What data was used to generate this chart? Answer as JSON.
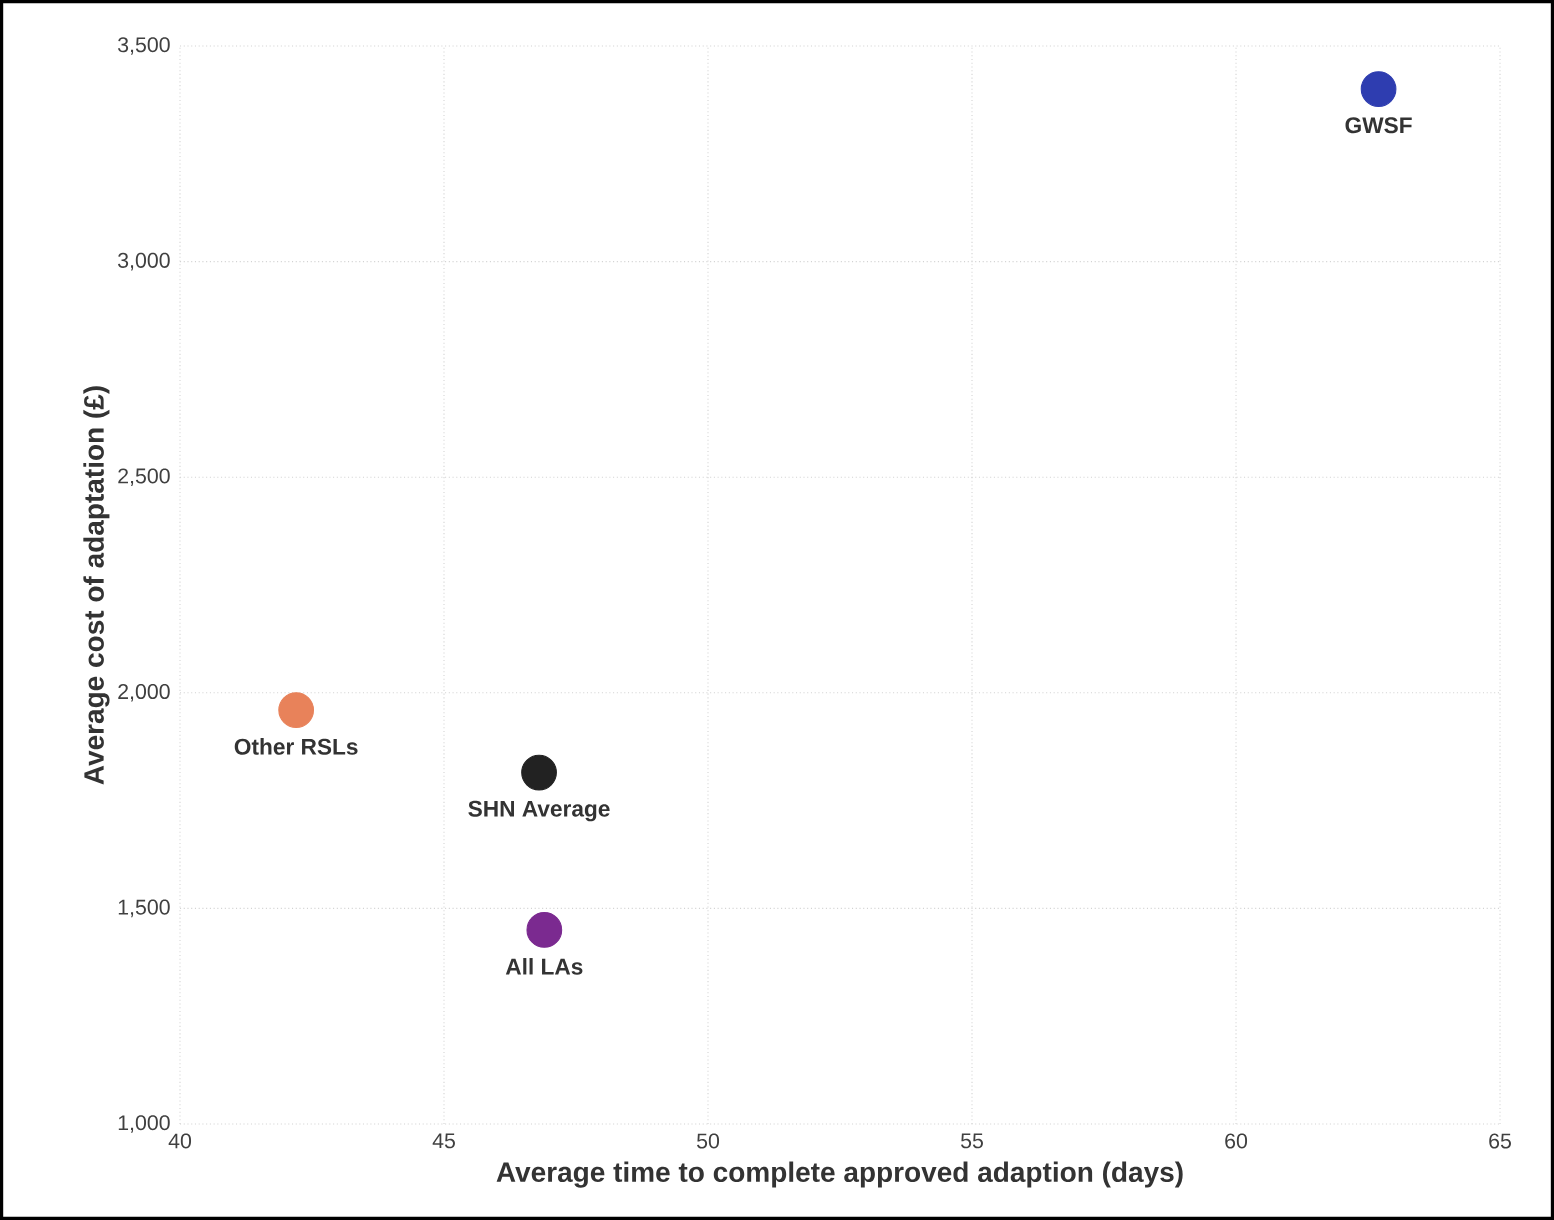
{
  "chart_data": {
    "type": "scatter",
    "xlabel": "Average time to complete approved adaption (days)",
    "ylabel": "Average cost of adaptation (£)",
    "xlim": [
      40,
      65
    ],
    "xticks": [
      40,
      45,
      50,
      55,
      60,
      65
    ],
    "ylim": [
      1000,
      3500
    ],
    "yticks": [
      {
        "value": 1000,
        "label": "1,000"
      },
      {
        "value": 1500,
        "label": "1,500"
      },
      {
        "value": 2000,
        "label": "2,000"
      },
      {
        "value": 2500,
        "label": "2,500"
      },
      {
        "value": 3000,
        "label": "3,000"
      },
      {
        "value": 3500,
        "label": "3,500"
      }
    ],
    "grid": true,
    "legend": false,
    "series": [
      {
        "name": "GWSF",
        "color": "#2e3db0",
        "x": [
          62.7
        ],
        "values": [
          3400
        ]
      },
      {
        "name": "Other RSLs",
        "color": "#e8825a",
        "x": [
          42.2
        ],
        "values": [
          1960
        ]
      },
      {
        "name": "SHN Average",
        "color": "#222222",
        "x": [
          46.8
        ],
        "values": [
          1815
        ]
      },
      {
        "name": "All LAs",
        "color": "#7b2a90",
        "x": [
          46.9
        ],
        "values": [
          1450
        ]
      }
    ]
  }
}
